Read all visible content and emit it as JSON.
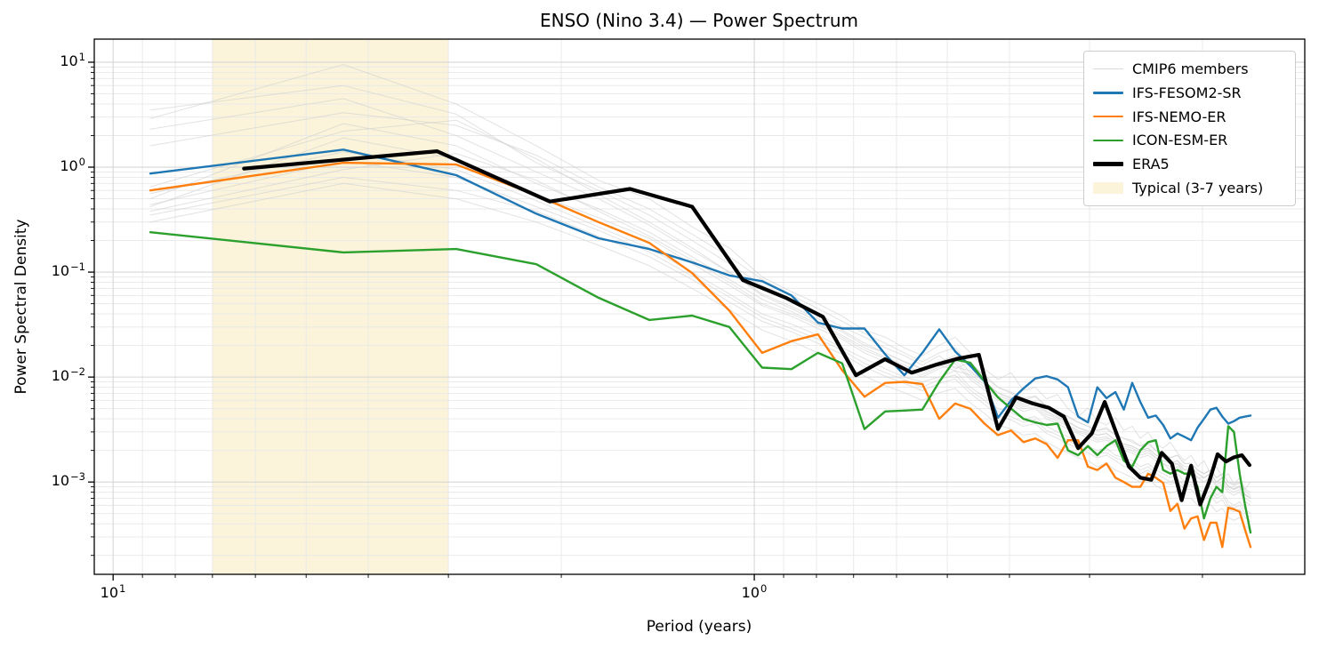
{
  "title": "ENSO (Nino 3.4) — Power Spectrum",
  "axes": {
    "xlabel": "Period (years)",
    "ylabel": "Power Spectral Density",
    "x_ticks": [
      {
        "base": "10",
        "exp": "1",
        "period_years": 10
      },
      {
        "base": "10",
        "exp": "0",
        "period_years": 1
      }
    ],
    "y_ticks": [
      {
        "base": "10",
        "exp": "1",
        "value": 10
      },
      {
        "base": "10",
        "exp": "0",
        "value": 1
      },
      {
        "base": "10",
        "exp": "−1",
        "value": 0.1
      },
      {
        "base": "10",
        "exp": "−2",
        "value": 0.01
      },
      {
        "base": "10",
        "exp": "−3",
        "value": 0.001
      }
    ]
  },
  "legend": {
    "items": [
      {
        "label": "CMIP6 members",
        "type": "line",
        "color": "#d9d9d9",
        "width": 1.3
      },
      {
        "label": "IFS-FESOM2-SR",
        "type": "line",
        "color": "#1f77b4",
        "width": 2.6
      },
      {
        "label": "IFS-NEMO-ER",
        "type": "line",
        "color": "#ff7f0e",
        "width": 2.6
      },
      {
        "label": "ICON-ESM-ER",
        "type": "line",
        "color": "#2ca02c",
        "width": 2.6
      },
      {
        "label": "ERA5",
        "type": "line",
        "color": "#000000",
        "width": 4.5
      },
      {
        "label": "Typical (3-7 years)",
        "type": "patch",
        "color": "#fbf4da"
      }
    ]
  },
  "colors": {
    "blue": "#1f77b4",
    "orange": "#ff7f0e",
    "green": "#2ca02c",
    "black": "#000000",
    "member_gray": "#cfcfcf",
    "band": "#fbf4da",
    "grid_major": "#d6d6d6",
    "grid_minor": "#e8e8e8",
    "spine": "#000000"
  },
  "chart_data": {
    "type": "line",
    "title": "ENSO (Nino 3.4) — Power Spectrum",
    "xlabel": "Period (years)",
    "ylabel": "Power Spectral Density",
    "x_scale": "log",
    "y_scale": "log",
    "x_reversed": true,
    "xlim_years": [
      10.7,
      0.1385
    ],
    "ylim": [
      0.000132,
      16.6
    ],
    "grid": true,
    "legend_position": "upper right",
    "band": {
      "label": "Typical (3-7 years)",
      "from_years": 3,
      "to_years": 7,
      "color": "#fbf4da"
    },
    "model_periods_years": [
      8.75,
      4.375,
      2.9167,
      2.1875,
      1.75,
      1.4583,
      1.25,
      1.0938,
      0.9722,
      0.875,
      0.7955,
      0.7292,
      0.6731,
      0.625,
      0.5833,
      0.5469,
      0.5147,
      0.4861,
      0.4605,
      0.4375,
      0.4167,
      0.3977,
      0.3804,
      0.3646,
      0.35,
      0.3365,
      0.3241,
      0.3125,
      0.3017,
      0.2917,
      0.2823,
      0.2734,
      0.2652,
      0.2574,
      0.25,
      0.2431,
      0.2365,
      0.2303,
      0.2244,
      0.2188,
      0.2134,
      0.2083,
      0.2035,
      0.1989,
      0.1944,
      0.1902,
      0.1862,
      0.1823,
      0.1786,
      0.175,
      0.1716,
      0.1683
    ],
    "era5_periods_years": [
      6.25,
      3.125,
      2.0833,
      1.5625,
      1.25,
      1.0417,
      0.8929,
      0.7813,
      0.6944,
      0.625,
      0.5682,
      0.5208,
      0.4808,
      0.4464,
      0.4167,
      0.3906,
      0.3676,
      0.3472,
      0.3289,
      0.3125,
      0.2976,
      0.2841,
      0.2717,
      0.2604,
      0.25,
      0.2404,
      0.2315,
      0.2232,
      0.2155,
      0.2083,
      0.2016,
      0.1953,
      0.1894,
      0.1838,
      0.1786,
      0.1736,
      0.1689
    ],
    "series": [
      {
        "name": "IFS-FESOM2-SR",
        "color": "#1f77b4",
        "linewidth": 2.4,
        "periods_key": "model_periods_years",
        "psd": [
          0.87,
          1.47,
          0.84,
          0.36,
          0.21,
          0.166,
          0.124,
          0.093,
          0.082,
          0.06,
          0.033,
          0.029,
          0.029,
          0.0165,
          0.0104,
          0.017,
          0.0285,
          0.0176,
          0.0128,
          0.0091,
          0.0041,
          0.006,
          0.0078,
          0.0097,
          0.0102,
          0.0095,
          0.008,
          0.0042,
          0.0037,
          0.008,
          0.0063,
          0.0072,
          0.0049,
          0.0088,
          0.0058,
          0.0041,
          0.0043,
          0.0035,
          0.0026,
          0.0029,
          0.0027,
          0.0025,
          0.0033,
          0.004,
          0.0049,
          0.0051,
          0.0042,
          0.0036,
          0.0038,
          0.0041,
          0.0042,
          0.0043
        ]
      },
      {
        "name": "IFS-NEMO-ER",
        "color": "#ff7f0e",
        "linewidth": 2.4,
        "periods_key": "model_periods_years",
        "psd": [
          0.6,
          1.1,
          1.06,
          0.54,
          0.3,
          0.19,
          0.098,
          0.043,
          0.017,
          0.022,
          0.0255,
          0.0116,
          0.0065,
          0.0088,
          0.009,
          0.0086,
          0.004,
          0.0056,
          0.005,
          0.0036,
          0.0028,
          0.0031,
          0.0024,
          0.0026,
          0.0023,
          0.0017,
          0.0025,
          0.0025,
          0.0014,
          0.0013,
          0.0015,
          0.0011,
          0.001,
          0.0009,
          0.0009,
          0.0012,
          0.0011,
          0.00098,
          0.00053,
          0.00062,
          0.00036,
          0.00045,
          0.00047,
          0.00028,
          0.00041,
          0.00041,
          0.00024,
          0.00057,
          0.00055,
          0.00052,
          0.00035,
          0.00024
        ]
      },
      {
        "name": "ICON-ESM-ER",
        "color": "#2ca02c",
        "linewidth": 2.4,
        "periods_key": "model_periods_years",
        "psd": [
          0.24,
          0.154,
          0.166,
          0.119,
          0.057,
          0.035,
          0.0385,
          0.03,
          0.0123,
          0.0119,
          0.017,
          0.0135,
          0.0032,
          0.0047,
          0.0048,
          0.0049,
          0.009,
          0.0147,
          0.0137,
          0.0092,
          0.0064,
          0.005,
          0.004,
          0.0037,
          0.0035,
          0.0036,
          0.002,
          0.0018,
          0.0022,
          0.0018,
          0.0022,
          0.0025,
          0.0016,
          0.0014,
          0.002,
          0.0024,
          0.0025,
          0.0013,
          0.0012,
          0.0013,
          0.0012,
          0.0012,
          0.0009,
          0.00045,
          0.0007,
          0.0009,
          0.0008,
          0.0034,
          0.003,
          0.0012,
          0.0006,
          0.00033
        ]
      },
      {
        "name": "ERA5",
        "color": "#000000",
        "linewidth": 4.2,
        "periods_key": "era5_periods_years",
        "psd": [
          0.97,
          1.42,
          0.47,
          0.62,
          0.42,
          0.084,
          0.057,
          0.0375,
          0.0104,
          0.0148,
          0.011,
          0.0131,
          0.015,
          0.0163,
          0.0032,
          0.0064,
          0.0056,
          0.0051,
          0.0042,
          0.0021,
          0.0029,
          0.0058,
          0.0028,
          0.0014,
          0.0011,
          0.00105,
          0.0019,
          0.0015,
          0.00067,
          0.00143,
          0.00061,
          0.001,
          0.00184,
          0.00157,
          0.00172,
          0.0018,
          0.00145
        ]
      }
    ],
    "cmip6_members": {
      "name": "CMIP6 members",
      "color": "#cfcfcf",
      "linewidth": 1.0,
      "opacity": 0.6,
      "periods_key": "model_periods_years",
      "psd_lines": [
        [
          2.9,
          9.5,
          4.0,
          1.6,
          0.75,
          0.5,
          0.27,
          0.17,
          0.09,
          0.065,
          0.05,
          0.038,
          0.028,
          0.024,
          0.019,
          0.016,
          0.02,
          0.024,
          0.017,
          0.012,
          0.0095,
          0.011,
          0.0075,
          0.008,
          0.0062,
          0.0068,
          0.005,
          0.0042,
          0.0051,
          0.0038,
          0.0035,
          0.0041,
          0.0031,
          0.0034,
          0.0026,
          0.003,
          0.0023,
          0.0021,
          0.0024,
          0.0019,
          0.0016,
          0.0018,
          0.0014,
          0.0016,
          0.0012,
          0.0014,
          0.0011,
          0.0012,
          0.00095,
          0.0011,
          0.00085,
          0.001
        ],
        [
          3.5,
          6.0,
          3.2,
          1.1,
          0.6,
          0.35,
          0.2,
          0.12,
          0.075,
          0.055,
          0.04,
          0.03,
          0.024,
          0.019,
          0.016,
          0.013,
          0.016,
          0.012,
          0.014,
          0.01,
          0.008,
          0.007,
          0.006,
          0.0065,
          0.0052,
          0.0047,
          0.0042,
          0.0037,
          0.0034,
          0.0031,
          0.0033,
          0.0028,
          0.0026,
          0.0025,
          0.0022,
          0.0024,
          0.002,
          0.0019,
          0.0017,
          0.0018,
          0.0015,
          0.0015,
          0.0013,
          0.0012,
          0.0013,
          0.0011,
          0.0012,
          0.001,
          0.00095,
          0.001,
          0.00085,
          0.0008
        ],
        [
          2.3,
          4.5,
          2.0,
          0.9,
          0.5,
          0.28,
          0.16,
          0.1,
          0.06,
          0.045,
          0.034,
          0.027,
          0.02,
          0.017,
          0.014,
          0.012,
          0.014,
          0.016,
          0.011,
          0.009,
          0.007,
          0.0062,
          0.0054,
          0.0057,
          0.0046,
          0.0041,
          0.0037,
          0.0033,
          0.003,
          0.0028,
          0.0029,
          0.0025,
          0.0023,
          0.0022,
          0.002,
          0.0021,
          0.0018,
          0.0017,
          0.0015,
          0.0016,
          0.0013,
          0.0014,
          0.0012,
          0.0011,
          0.0012,
          0.001,
          0.0011,
          0.0009,
          0.00085,
          0.0009,
          0.00075,
          0.0007
        ],
        [
          0.42,
          1.9,
          1.2,
          0.55,
          0.33,
          0.21,
          0.12,
          0.075,
          0.048,
          0.038,
          0.029,
          0.023,
          0.017,
          0.014,
          0.012,
          0.01,
          0.012,
          0.0135,
          0.0095,
          0.0075,
          0.006,
          0.0055,
          0.0047,
          0.005,
          0.004,
          0.0036,
          0.0032,
          0.0029,
          0.0026,
          0.0024,
          0.0025,
          0.0022,
          0.002,
          0.0019,
          0.0017,
          0.0018,
          0.0016,
          0.0015,
          0.0013,
          0.0014,
          0.0012,
          0.0012,
          0.001,
          0.001,
          0.0011,
          0.0009,
          0.00095,
          0.0008,
          0.00075,
          0.0008,
          0.00065,
          0.0006
        ],
        [
          0.56,
          1.4,
          0.95,
          0.48,
          0.27,
          0.17,
          0.1,
          0.062,
          0.04,
          0.032,
          0.025,
          0.019,
          0.015,
          0.012,
          0.01,
          0.009,
          0.01,
          0.0115,
          0.008,
          0.0065,
          0.005,
          0.0046,
          0.004,
          0.0042,
          0.0034,
          0.003,
          0.0027,
          0.0024,
          0.0022,
          0.002,
          0.0021,
          0.0018,
          0.0017,
          0.0016,
          0.0014,
          0.0015,
          0.0013,
          0.0012,
          0.0011,
          0.0012,
          0.001,
          0.001,
          0.00085,
          0.0008,
          0.0009,
          0.00075,
          0.0008,
          0.00065,
          0.0006,
          0.00065,
          0.00055,
          0.0005
        ],
        [
          0.38,
          0.95,
          1.35,
          0.75,
          0.38,
          0.22,
          0.13,
          0.08,
          0.05,
          0.04,
          0.031,
          0.024,
          0.018,
          0.015,
          0.0125,
          0.0105,
          0.0125,
          0.0145,
          0.01,
          0.008,
          0.0063,
          0.0057,
          0.005,
          0.0052,
          0.0042,
          0.0038,
          0.0034,
          0.003,
          0.0028,
          0.0025,
          0.0026,
          0.0023,
          0.0021,
          0.002,
          0.0018,
          0.0019,
          0.0017,
          0.0015,
          0.0014,
          0.0015,
          0.0012,
          0.0013,
          0.0011,
          0.001,
          0.0011,
          0.00095,
          0.001,
          0.00085,
          0.0008,
          0.00085,
          0.0007,
          0.00065
        ],
        [
          0.5,
          2.6,
          1.6,
          0.7,
          0.4,
          0.24,
          0.14,
          0.085,
          0.055,
          0.042,
          0.032,
          0.025,
          0.019,
          0.0155,
          0.013,
          0.011,
          0.013,
          0.0115,
          0.0105,
          0.0085,
          0.0066,
          0.006,
          0.0052,
          0.0055,
          0.0044,
          0.004,
          0.0035,
          0.0031,
          0.0029,
          0.0026,
          0.0027,
          0.0024,
          0.0022,
          0.0021,
          0.0019,
          0.002,
          0.0017,
          0.0016,
          0.0015,
          0.0015,
          0.0013,
          0.0013,
          0.0011,
          0.0011,
          0.0012,
          0.001,
          0.0011,
          0.0009,
          0.00085,
          0.0009,
          0.00075,
          0.0007
        ],
        [
          0.44,
          1.15,
          0.8,
          0.42,
          0.25,
          0.155,
          0.092,
          0.058,
          0.037,
          0.029,
          0.023,
          0.018,
          0.0135,
          0.011,
          0.0095,
          0.008,
          0.0095,
          0.0105,
          0.0075,
          0.006,
          0.0047,
          0.0042,
          0.0037,
          0.0039,
          0.0031,
          0.0028,
          0.0025,
          0.0022,
          0.0021,
          0.0019,
          0.0019,
          0.0017,
          0.0016,
          0.0015,
          0.0013,
          0.0014,
          0.0012,
          0.0011,
          0.001,
          0.0011,
          0.0009,
          0.00095,
          0.0008,
          0.00075,
          0.00082,
          0.0007,
          0.00075,
          0.0006,
          0.00057,
          0.0006,
          0.0005,
          0.00046
        ],
        [
          0.35,
          0.8,
          0.6,
          0.38,
          0.22,
          0.14,
          0.085,
          0.052,
          0.034,
          0.027,
          0.021,
          0.0165,
          0.0125,
          0.0102,
          0.0087,
          0.0074,
          0.0087,
          0.0096,
          0.007,
          0.0055,
          0.0043,
          0.0039,
          0.0034,
          0.0036,
          0.0029,
          0.0026,
          0.0023,
          0.0021,
          0.0019,
          0.0017,
          0.0018,
          0.0016,
          0.0014,
          0.0014,
          0.0012,
          0.0013,
          0.0011,
          0.001,
          0.00095,
          0.001,
          0.00085,
          0.00085,
          0.00072,
          0.00068,
          0.00075,
          0.00063,
          0.00068,
          0.00055,
          0.00052,
          0.00055,
          0.00046,
          0.00042
        ],
        [
          1.6,
          3.3,
          2.5,
          1.3,
          0.65,
          0.4,
          0.23,
          0.14,
          0.085,
          0.06,
          0.045,
          0.034,
          0.026,
          0.021,
          0.017,
          0.014,
          0.017,
          0.019,
          0.013,
          0.0105,
          0.008,
          0.0072,
          0.0063,
          0.0066,
          0.0053,
          0.0047,
          0.0042,
          0.0037,
          0.0034,
          0.0031,
          0.0032,
          0.0028,
          0.0026,
          0.0024,
          0.0022,
          0.0023,
          0.002,
          0.0018,
          0.0017,
          0.0018,
          0.0015,
          0.0015,
          0.0013,
          0.0012,
          0.0013,
          0.0011,
          0.0012,
          0.001,
          0.00092,
          0.00098,
          0.00082,
          0.00075
        ],
        [
          0.65,
          2.2,
          2.8,
          1.2,
          0.55,
          0.3,
          0.17,
          0.1,
          0.062,
          0.047,
          0.036,
          0.028,
          0.021,
          0.017,
          0.014,
          0.012,
          0.014,
          0.0125,
          0.0115,
          0.009,
          0.0071,
          0.0064,
          0.0056,
          0.0059,
          0.0047,
          0.0042,
          0.0038,
          0.0033,
          0.0031,
          0.0028,
          0.0029,
          0.0025,
          0.0023,
          0.0022,
          0.002,
          0.0021,
          0.0018,
          0.0017,
          0.0015,
          0.0016,
          0.0014,
          0.0014,
          0.0012,
          0.0011,
          0.0012,
          0.001,
          0.0011,
          0.00092,
          0.00087,
          0.00092,
          0.00077,
          0.00072
        ],
        [
          0.3,
          0.7,
          0.5,
          0.3,
          0.18,
          0.115,
          0.07,
          0.044,
          0.028,
          0.022,
          0.017,
          0.0135,
          0.0102,
          0.0083,
          0.0071,
          0.006,
          0.0071,
          0.0078,
          0.0057,
          0.0045,
          0.0035,
          0.0032,
          0.0028,
          0.0029,
          0.0024,
          0.0021,
          0.0019,
          0.0017,
          0.0016,
          0.0014,
          0.0015,
          0.0013,
          0.0012,
          0.0011,
          0.001,
          0.0011,
          0.00092,
          0.00085,
          0.00078,
          0.00082,
          0.0007,
          0.0007,
          0.0006,
          0.00056,
          0.00061,
          0.00052,
          0.00056,
          0.00046,
          0.00043,
          0.00046,
          0.00038,
          0.00035
        ]
      ]
    }
  }
}
